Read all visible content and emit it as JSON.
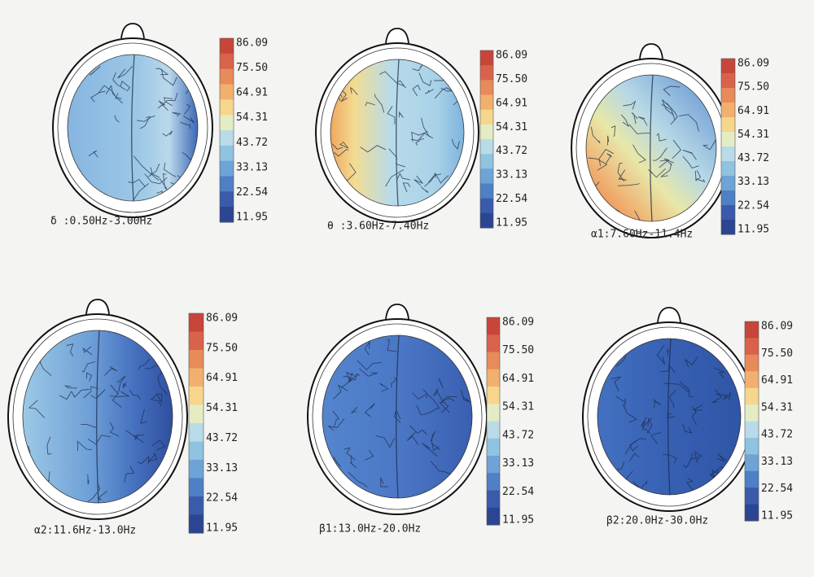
{
  "colorbar_ticks": [
    "86.09",
    "75.50",
    "64.91",
    "54.31",
    "43.72",
    "33.13",
    "22.54",
    "11.95"
  ],
  "panels": [
    {
      "label": "δ :0.50Hz-3.00Hz"
    },
    {
      "label": "θ :3.60Hz-7.40Hz"
    },
    {
      "label": "α1:7.60Hz-11.4Hz"
    },
    {
      "label": "α2:11.6Hz-13.0Hz"
    },
    {
      "label": "β1:13.0Hz-20.0Hz"
    },
    {
      "label": "β2:20.0Hz-30.0Hz"
    }
  ]
}
